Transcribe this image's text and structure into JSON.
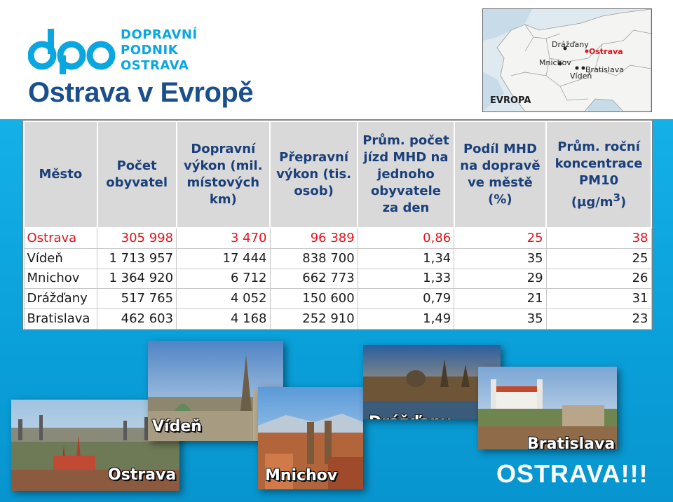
{
  "brand": {
    "line1": "DOPRAVNÍ",
    "line2": "PODNIK",
    "line3": "OSTRAVA",
    "color": "#0aa6e0"
  },
  "title": "Ostrava v Evropě",
  "map": {
    "cities": [
      "Drážďany",
      "Ostrava",
      "Mnichov",
      "Bratislava",
      "Vídeň"
    ],
    "region": "EVROPA"
  },
  "table": {
    "headers": [
      "Město",
      "Počet obyvatel",
      "Dopravní výkon (mil. místových km)",
      "Přepravní výkon (tis. osob)",
      "Prům. počet jízd MHD na jednoho obyvatele za den",
      "Podíl MHD na dopravě ve městě (%)",
      "Prům. roční koncentrace PM10 (µg/m3)"
    ],
    "rows": [
      {
        "city": "Ostrava",
        "population": "305 998",
        "transport": "3 470",
        "passengers": "96 389",
        "trips": "0,86",
        "share": "25",
        "pm10": "38"
      },
      {
        "city": "Vídeň",
        "population": "1 713 957",
        "transport": "17 444",
        "passengers": "838 700",
        "trips": "1,34",
        "share": "35",
        "pm10": "25"
      },
      {
        "city": "Mnichov",
        "population": "1 364 920",
        "transport": "6 712",
        "passengers": "662 773",
        "trips": "1,33",
        "share": "29",
        "pm10": "26"
      },
      {
        "city": "Drážďany",
        "population": "517 765",
        "transport": "4 052",
        "passengers": "150 600",
        "trips": "0,79",
        "share": "21",
        "pm10": "31"
      },
      {
        "city": "Bratislava",
        "population": "462 603",
        "transport": "4 168",
        "passengers": "252 910",
        "trips": "1,49",
        "share": "35",
        "pm10": "23"
      }
    ]
  },
  "photos": {
    "ostrava": "Ostrava",
    "viden": "Vídeň",
    "mnichov": "Mnichov",
    "drazdany": "Drážďany",
    "bratislava": "Bratislava"
  },
  "footer": "OSTRAVA!!!",
  "colors": {
    "highlight": "#e0141e",
    "header_text": "#1a3f7a",
    "title": "#1a4e8c",
    "background": "#0aa6e0"
  }
}
